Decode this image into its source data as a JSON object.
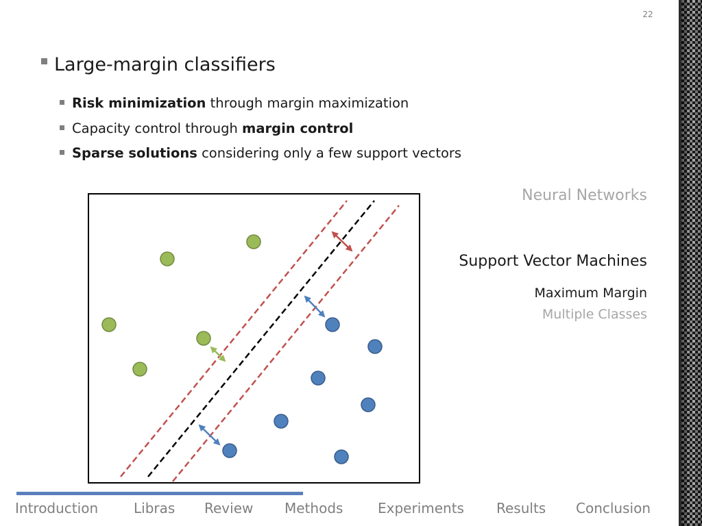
{
  "slide": {
    "number": "22"
  },
  "main_bullet": "Large-margin classifiers",
  "sub_bullets": [
    {
      "bold": "Risk minimization",
      "rest": " through margin maximization"
    },
    {
      "plain": "Capacity control through ",
      "bold": "margin control"
    },
    {
      "bold": "Sparse solutions",
      "rest": " considering only a few support vectors"
    }
  ],
  "sidebar": {
    "neural_networks": "Neural Networks",
    "svm": "Support Vector Machines",
    "max_margin": "Maximum Margin",
    "multiple_classes": "Multiple Classes"
  },
  "footer": {
    "tabs": [
      "Introduction",
      "Libras",
      "Review",
      "Methods",
      "Experiments",
      "Results",
      "Conclusion"
    ],
    "progress_fraction": 0.45
  },
  "colors": {
    "green_class": "#9bbb59",
    "blue_class": "#4f81bd",
    "margin_line": "#c0504d",
    "decision_line": "#000000",
    "footer_bar": "#5b7fbd"
  }
}
